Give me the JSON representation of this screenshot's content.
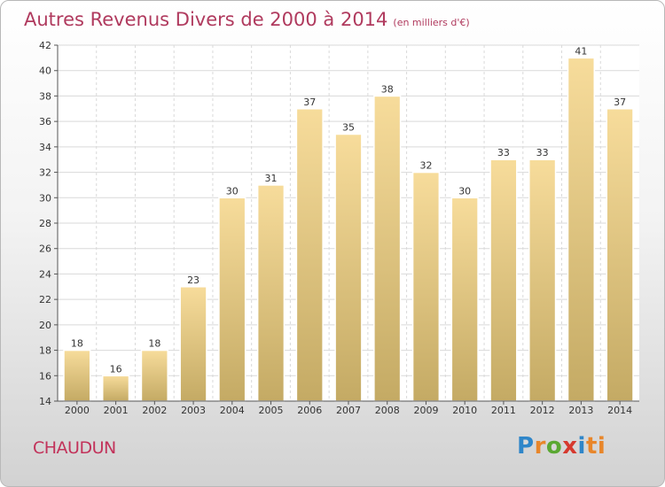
{
  "chart_data": {
    "type": "bar",
    "title": "Autres Revenus Divers de 2000 à 2014",
    "subtitle": "(en milliers d'€)",
    "xlabel": "",
    "ylabel": "",
    "categories": [
      "2000",
      "2001",
      "2002",
      "2003",
      "2004",
      "2005",
      "2006",
      "2007",
      "2008",
      "2009",
      "2010",
      "2011",
      "2012",
      "2013",
      "2014"
    ],
    "values": [
      18,
      16,
      18,
      23,
      30,
      31,
      37,
      35,
      38,
      32,
      30,
      33,
      33,
      41,
      37
    ],
    "ylim": [
      14,
      42
    ],
    "yticks": [
      14,
      16,
      18,
      20,
      22,
      24,
      26,
      28,
      30,
      32,
      34,
      36,
      38,
      40,
      42
    ],
    "grid": true,
    "legend": "none",
    "colors": {
      "bar_top": "#f7dc9b",
      "bar_bottom": "#c4aa64",
      "bar_edge": "#ffffff",
      "axis": "#555555",
      "grid": "#d9d9d9"
    }
  },
  "footer": {
    "commune": "CHAUDUN",
    "logo": [
      "P",
      "r",
      "o",
      "x",
      "i",
      "ti"
    ]
  }
}
